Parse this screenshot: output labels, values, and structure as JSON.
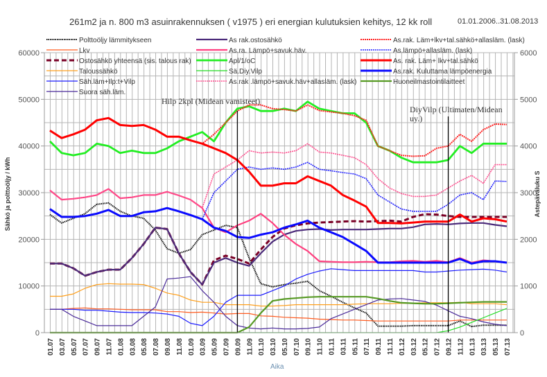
{
  "chart_data": {
    "type": "line",
    "title": "261m2 ja n. 800 m3 asuinrakennuksen ( v1975 ) eri energian kulutuksien kehitys, 12 kk roll",
    "date_range": "01.01.2006..31.08.2013",
    "xlabel": "Aika",
    "ylabel": "Sähkö ja polttoöljy / kWh",
    "y2label": "Astepäväluku S",
    "ylim": [
      0,
      60000
    ],
    "y2lim": [
      0,
      6000
    ],
    "yticks": [
      "0",
      "10000",
      "20000",
      "30000",
      "40000",
      "50000",
      "60000"
    ],
    "y2ticks": [
      "0",
      "1000",
      "2000",
      "3000",
      "4000",
      "5000",
      "6000"
    ],
    "grid": true,
    "legend_position": "top",
    "x": [
      "01.07",
      "03.07",
      "05.07",
      "07.07",
      "09.07",
      "11.07",
      "01.08",
      "03.08",
      "05.08",
      "07.08",
      "09.08",
      "11.08",
      "01.09",
      "03.09",
      "05.09",
      "07.09",
      "09.09",
      "11.09",
      "01.10",
      "03.10",
      "05.10",
      "07.10",
      "09.10",
      "11.10",
      "01.11",
      "03.11",
      "05.11",
      "07.11",
      "09.11",
      "11.11",
      "01.12",
      "03.12",
      "05.12",
      "07.12",
      "09.12",
      "11.12",
      "01.13",
      "03.13",
      "05.13",
      "07.13"
    ],
    "annotations": [
      {
        "text": "Hilp 2kpl (Midean vamisteet)",
        "x": "09.09"
      },
      {
        "text": "DiyVilp (Ultimaten/Midean uy.)",
        "x": "09.12"
      }
    ],
    "series": [
      {
        "name": "Polttoöljy lämmitykseen",
        "color": "#111111",
        "style": "hatched",
        "width": 2,
        "values": [
          25300,
          23500,
          24500,
          25500,
          27500,
          27800,
          26000,
          25000,
          24500,
          22000,
          18000,
          17000,
          17800,
          21000,
          22000,
          23000,
          22500,
          16000,
          10500,
          9800,
          10300,
          10600,
          11000,
          9000,
          7800,
          6500,
          5300,
          4200,
          1400,
          1400,
          1400,
          1500,
          1500,
          1500,
          1500,
          2500,
          1300,
          1600,
          1600,
          1600
        ]
      },
      {
        "name": "Lkv",
        "color": "#ff5a1e",
        "style": "solid",
        "width": 1.2,
        "values": [
          5000,
          5000,
          5200,
          5300,
          5100,
          5100,
          5000,
          4900,
          4900,
          4900,
          4500,
          4500,
          4300,
          4400,
          4200,
          4000,
          4100,
          4100,
          3600,
          3500,
          3300,
          3200,
          3100,
          2900,
          2800,
          2700,
          2700,
          2600,
          2500,
          2500,
          2500,
          2500,
          2500,
          2500,
          2500,
          2700,
          2700,
          2700,
          2700,
          2700
        ]
      },
      {
        "name": "Ostosähkö yhteensä (sis. talous rak)",
        "color": "#7a0026",
        "style": "dashed",
        "width": 3,
        "values": [
          14800,
          14800,
          13800,
          12200,
          13000,
          13500,
          13500,
          16000,
          19000,
          22500,
          22200,
          17000,
          13000,
          10300,
          15500,
          16500,
          15800,
          14800,
          17800,
          20500,
          22300,
          23000,
          23400,
          23600,
          23700,
          23800,
          23900,
          23800,
          23900,
          24000,
          23800,
          24800,
          25400,
          25300,
          25000,
          24800,
          24800,
          24800,
          24800,
          24800
        ]
      },
      {
        "name": "Taloussähkö",
        "color": "#ff9f1a",
        "style": "solid",
        "width": 1.2,
        "values": [
          7800,
          7800,
          8300,
          9500,
          10300,
          10500,
          10400,
          10400,
          10300,
          9500,
          8500,
          8000,
          7000,
          6500,
          6500,
          6000,
          6000,
          6000,
          5700,
          5700,
          5800,
          6000,
          6000,
          6000,
          6000,
          6000,
          6100,
          6200,
          6200,
          6200,
          6300,
          6300,
          6400,
          6400,
          6400,
          6500,
          6200,
          6200,
          6200,
          6000
        ]
      },
      {
        "name": "Säh.läm+Ilp:t+Vilp",
        "color": "#1a1aff",
        "style": "solid",
        "width": 1.2,
        "values": [
          5000,
          5000,
          5000,
          4800,
          4800,
          4600,
          4400,
          4300,
          4300,
          4200,
          4000,
          3500,
          2000,
          1500,
          3500,
          6500,
          8000,
          8000,
          8000,
          9000,
          10000,
          11500,
          12500,
          13200,
          13700,
          13500,
          13300,
          13300,
          13300,
          13300,
          13300,
          13300,
          13000,
          13000,
          13200,
          13400,
          13500,
          13600,
          13400,
          13000
        ]
      },
      {
        "name": "Suora säh.läm.",
        "color": "#4a2a9a",
        "style": "solid",
        "width": 1.2,
        "values": [
          5000,
          5000,
          3500,
          2500,
          1500,
          1500,
          1500,
          1500,
          3500,
          5500,
          11500,
          11700,
          12000,
          9000,
          6500,
          3500,
          1500,
          1000,
          800,
          1000,
          800,
          800,
          900,
          1200,
          3000,
          4000,
          5000,
          6000,
          7000,
          7200,
          7300,
          7000,
          6700,
          5900,
          4700,
          3500,
          3000,
          2300,
          1800,
          1500
        ]
      },
      {
        "name": "As rak.ostosähkö",
        "color": "#4b2a7a",
        "style": "solid",
        "width": 2.2,
        "values": [
          14800,
          14800,
          13800,
          12200,
          13000,
          13500,
          13500,
          16000,
          19000,
          22500,
          22200,
          17000,
          13000,
          10300,
          15000,
          16000,
          15000,
          14300,
          17000,
          19500,
          21000,
          21800,
          22100,
          22200,
          22000,
          22100,
          22100,
          22100,
          22200,
          22300,
          22300,
          22600,
          23200,
          23300,
          23200,
          23400,
          23500,
          23500,
          23100,
          22800
        ]
      },
      {
        "name": "As.ra. Lämpö+savuk.häv.",
        "color": "#ff3f7f",
        "style": "solid",
        "width": 2.2,
        "values": [
          30500,
          28500,
          28700,
          29000,
          29500,
          30800,
          28800,
          29000,
          29500,
          29500,
          30200,
          29400,
          28500,
          26700,
          22500,
          21500,
          23000,
          24000,
          25500,
          23500,
          21000,
          19000,
          17500,
          15300,
          15200,
          15100,
          15100,
          15200,
          15100,
          15100,
          15300,
          15400,
          15200,
          15400,
          15100,
          16000,
          15000,
          15500,
          15300,
          15000
        ]
      },
      {
        "name": "Apl/1/oC",
        "color": "#22ee22",
        "style": "solid",
        "width": 2.8,
        "axis": "y2",
        "values": [
          4100,
          3850,
          3800,
          3850,
          4050,
          4000,
          3850,
          3900,
          3850,
          3850,
          3950,
          4100,
          4200,
          4300,
          4100,
          4500,
          4800,
          4850,
          4750,
          4750,
          4800,
          4750,
          4950,
          4800,
          4750,
          4700,
          4700,
          4500,
          4000,
          3900,
          3750,
          3650,
          3650,
          3650,
          3700,
          4000,
          3850,
          4050,
          4050,
          4050
        ]
      },
      {
        "name": "Sä.Diy.Vilp",
        "color": "#22dd22",
        "style": "solid",
        "width": 1.2,
        "values": [
          0,
          0,
          0,
          0,
          0,
          0,
          0,
          0,
          0,
          0,
          0,
          0,
          0,
          0,
          0,
          0,
          0,
          0,
          0,
          0,
          0,
          0,
          0,
          0,
          0,
          0,
          0,
          0,
          0,
          0,
          0,
          0,
          0,
          0,
          400,
          1200,
          2200,
          3200,
          4200,
          5200
        ]
      },
      {
        "name": "As.rak .lämpö+savuk.häv+allasläm. (lask)",
        "color": "#ff4f8f",
        "style": "dotted",
        "width": 1.6,
        "values": [
          30500,
          28500,
          28700,
          29000,
          29500,
          30800,
          28800,
          29000,
          29500,
          29500,
          30200,
          29400,
          28500,
          26700,
          34000,
          35500,
          37000,
          39000,
          38500,
          38700,
          38500,
          39000,
          40500,
          38700,
          38500,
          38000,
          37500,
          36000,
          33000,
          31000,
          29800,
          29200,
          29200,
          29500,
          31000,
          32500,
          33700,
          32000,
          36000,
          36000
        ]
      },
      {
        "name": "As.rak. Läm+lkv+tal.sähkö+allasläm. (lask)",
        "color": "#ff2020",
        "style": "dotted",
        "width": 2,
        "values": [
          43300,
          41700,
          42500,
          43500,
          45500,
          46000,
          44500,
          44300,
          44500,
          43500,
          42000,
          42000,
          41200,
          40500,
          42500,
          45000,
          47500,
          48800,
          48800,
          48000,
          47800,
          47500,
          48800,
          47600,
          47300,
          47000,
          46500,
          45500,
          40000,
          39000,
          38000,
          37800,
          37900,
          39500,
          40000,
          42500,
          41000,
          43500,
          44700,
          44600
        ]
      },
      {
        "name": "As.lämpö+allasläm. (lask)",
        "color": "#1f1fff",
        "style": "dotted",
        "width": 1.6,
        "values": [
          26500,
          24800,
          24800,
          25000,
          25500,
          26300,
          25000,
          25000,
          25800,
          26000,
          26700,
          26000,
          25200,
          24300,
          30000,
          32500,
          35000,
          35500,
          35000,
          35300,
          35000,
          35500,
          36500,
          35000,
          34700,
          34300,
          34000,
          33000,
          29500,
          28000,
          26500,
          26000,
          26000,
          26000,
          27500,
          29500,
          30000,
          28500,
          32500,
          32400
        ]
      },
      {
        "name": "As. rak. Läm+ lkv+tal.sähkö",
        "color": "#ff0000",
        "style": "solid",
        "width": 3,
        "values": [
          43300,
          41700,
          42500,
          43500,
          45500,
          46000,
          44500,
          44300,
          44500,
          43500,
          42000,
          42000,
          41200,
          40500,
          39500,
          38500,
          37000,
          34500,
          31500,
          31500,
          32000,
          32000,
          33500,
          32500,
          31500,
          29500,
          28300,
          27000,
          23500,
          23500,
          23400,
          23600,
          23800,
          23800,
          23800,
          25300,
          23800,
          24500,
          24300,
          23800
        ]
      },
      {
        "name": "As.rak. Kuluttama lämpöenergia",
        "color": "#0a0aff",
        "style": "solid",
        "width": 3,
        "values": [
          26500,
          24800,
          24800,
          25000,
          25500,
          26300,
          25000,
          25000,
          25800,
          26000,
          26700,
          26000,
          25200,
          24300,
          22500,
          21800,
          20500,
          20300,
          21000,
          21500,
          22500,
          23200,
          24000,
          22500,
          21500,
          20500,
          19000,
          17500,
          15000,
          15000,
          15000,
          15000,
          15000,
          15000,
          15000,
          15800,
          14800,
          15300,
          15300,
          15000
        ]
      },
      {
        "name": "Huoneilmastointilaitteet",
        "color": "#559922",
        "style": "solid",
        "width": 2.2,
        "values": [
          0,
          0,
          0,
          0,
          0,
          0,
          0,
          0,
          0,
          0,
          0,
          0,
          0,
          0,
          0,
          0,
          0,
          1200,
          4200,
          6800,
          7200,
          7400,
          7600,
          7700,
          7700,
          7700,
          7700,
          7700,
          7300,
          6800,
          6400,
          6300,
          6200,
          6200,
          6300,
          6400,
          6500,
          6600,
          6600,
          6600
        ]
      }
    ]
  },
  "legend_columns": [
    [
      "Polttoöljy lämmitykseen",
      "Lkv",
      "Ostosähkö yhteensä (sis. talous rak)",
      "Taloussähkö",
      "Säh.läm+Ilp:t+Vilp",
      "Suora säh.läm."
    ],
    [
      "As rak.ostosähkö",
      "As.ra. Lämpö+savuk.häv.",
      "Apl/1/oC",
      "Sä.Diy.Vilp",
      "As.rak .lämpö+savuk.häv+allasläm. (lask)"
    ],
    [
      "As.rak. Läm+lkv+tal.sähkö+allasläm. (lask)",
      "As.lämpö+allasläm. (lask)",
      "As. rak. Läm+ lkv+tal.sähkö",
      "As.rak. Kuluttama lämpöenergia",
      "Huoneilmastointilaitteet"
    ]
  ]
}
